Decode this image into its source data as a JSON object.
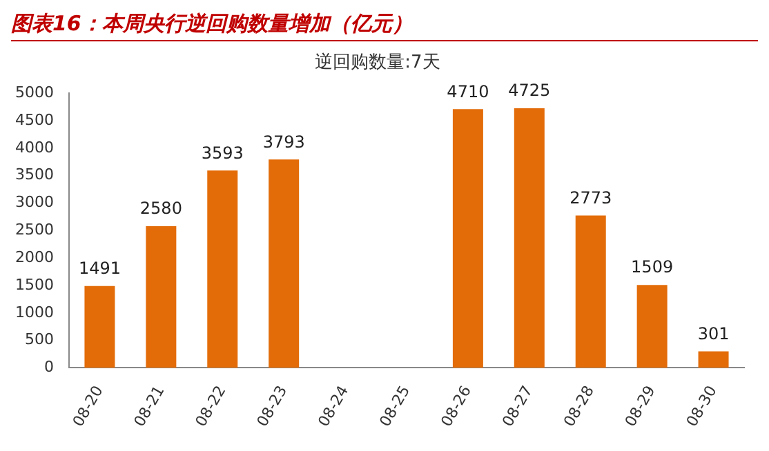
{
  "chart_data": {
    "type": "bar",
    "title": "图表16：本周央行逆回购数量增加（亿元）",
    "subtitle": "逆回购数量:7天",
    "categories": [
      "08-20",
      "08-21",
      "08-22",
      "08-23",
      "08-24",
      "08-25",
      "08-26",
      "08-27",
      "08-28",
      "08-29",
      "08-30"
    ],
    "values": [
      1491,
      2580,
      3593,
      3793,
      null,
      null,
      4710,
      4725,
      2773,
      1509,
      301
    ],
    "color": "#e36c09",
    "ylim": [
      0,
      5000
    ],
    "yticks": [
      0,
      500,
      1000,
      1500,
      2000,
      2500,
      3000,
      3500,
      4000,
      4500,
      5000
    ],
    "grid": false,
    "data_labels": true
  }
}
